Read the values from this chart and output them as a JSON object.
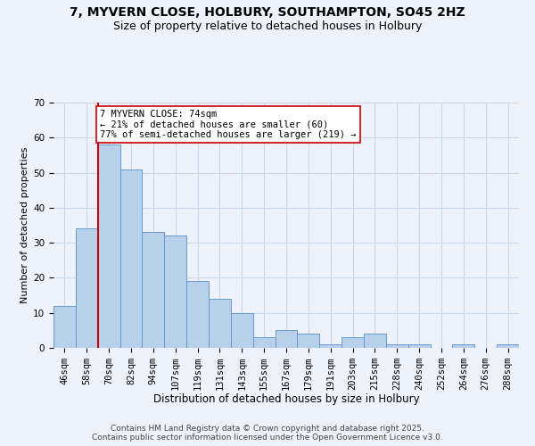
{
  "title_line1": "7, MYVERN CLOSE, HOLBURY, SOUTHAMPTON, SO45 2HZ",
  "title_line2": "Size of property relative to detached houses in Holbury",
  "xlabel": "Distribution of detached houses by size in Holbury",
  "ylabel": "Number of detached properties",
  "bar_labels": [
    "46sqm",
    "58sqm",
    "70sqm",
    "82sqm",
    "94sqm",
    "107sqm",
    "119sqm",
    "131sqm",
    "143sqm",
    "155sqm",
    "167sqm",
    "179sqm",
    "191sqm",
    "203sqm",
    "215sqm",
    "228sqm",
    "240sqm",
    "252sqm",
    "264sqm",
    "276sqm",
    "288sqm"
  ],
  "bar_values": [
    12,
    34,
    58,
    51,
    33,
    32,
    19,
    14,
    10,
    3,
    5,
    4,
    1,
    3,
    4,
    1,
    1,
    0,
    1,
    0,
    1
  ],
  "bar_color": "#b8d0ea",
  "bar_edge_color": "#6699cc",
  "bar_width": 1.0,
  "red_line_index": 2,
  "red_line_x": 2.0,
  "red_line_color": "#cc0000",
  "annotation_text": "7 MYVERN CLOSE: 74sqm\n← 21% of detached houses are smaller (60)\n77% of semi-detached houses are larger (219) →",
  "annotation_box_color": "#ffffff",
  "annotation_box_edge": "#cc0000",
  "ylim": [
    0,
    70
  ],
  "yticks": [
    0,
    10,
    20,
    30,
    40,
    50,
    60,
    70
  ],
  "grid_color": "#c8d8e8",
  "bg_color": "#eef2fb",
  "footer_line1": "Contains HM Land Registry data © Crown copyright and database right 2025.",
  "footer_line2": "Contains public sector information licensed under the Open Government Licence v3.0.",
  "title_fontsize": 10,
  "subtitle_fontsize": 9,
  "xlabel_fontsize": 8.5,
  "ylabel_fontsize": 8,
  "tick_fontsize": 7.5,
  "annotation_fontsize": 7.5,
  "footer_fontsize": 6.5
}
